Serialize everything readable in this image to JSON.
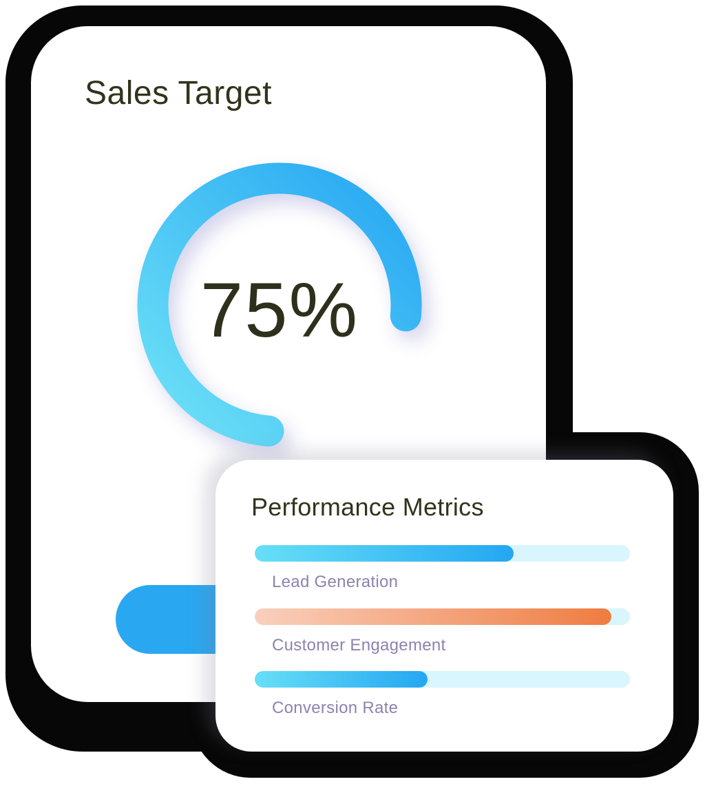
{
  "chart_data": [
    {
      "type": "pie",
      "subtype": "donut-progress",
      "title": "Sales Target",
      "values": [
        75,
        25
      ],
      "labels": [
        "progress",
        "remaining"
      ],
      "center_label": "75%",
      "legend": "none"
    },
    {
      "type": "bar",
      "orientation": "horizontal",
      "title": "Performance Metrics",
      "categories": [
        "Lead Generation",
        "Customer Engagement",
        "Conversion Rate"
      ],
      "values": [
        69,
        95,
        46
      ],
      "xlim": [
        0,
        100
      ],
      "grid": "off",
      "legend": "none"
    }
  ],
  "sales_card": {
    "title": "Sales Target",
    "percent_label": "75%",
    "progress": 75
  },
  "metrics_card": {
    "title": "Performance Metrics",
    "bars": [
      {
        "label": "Lead Generation",
        "percent": 69,
        "palette": "blue"
      },
      {
        "label": "Customer Engagement",
        "percent": 95,
        "palette": "orange"
      },
      {
        "label": "Conversion Rate",
        "percent": 46,
        "palette": "blue"
      }
    ]
  },
  "colors": {
    "outline": "#070707",
    "title_text": "#32331c",
    "percent_text": "#2e301c",
    "label_text": "#8d83ae",
    "button": "#29a8f1",
    "track": "#d9f5fd",
    "ring_gradient_start": "#6ee2f7",
    "ring_gradient_end": "#26a6f2",
    "bar_blue_start": "#67dff7",
    "bar_blue_end": "#23a7f2",
    "bar_orange_start": "#f9d0bd",
    "bar_orange_end": "#ef7c41"
  }
}
